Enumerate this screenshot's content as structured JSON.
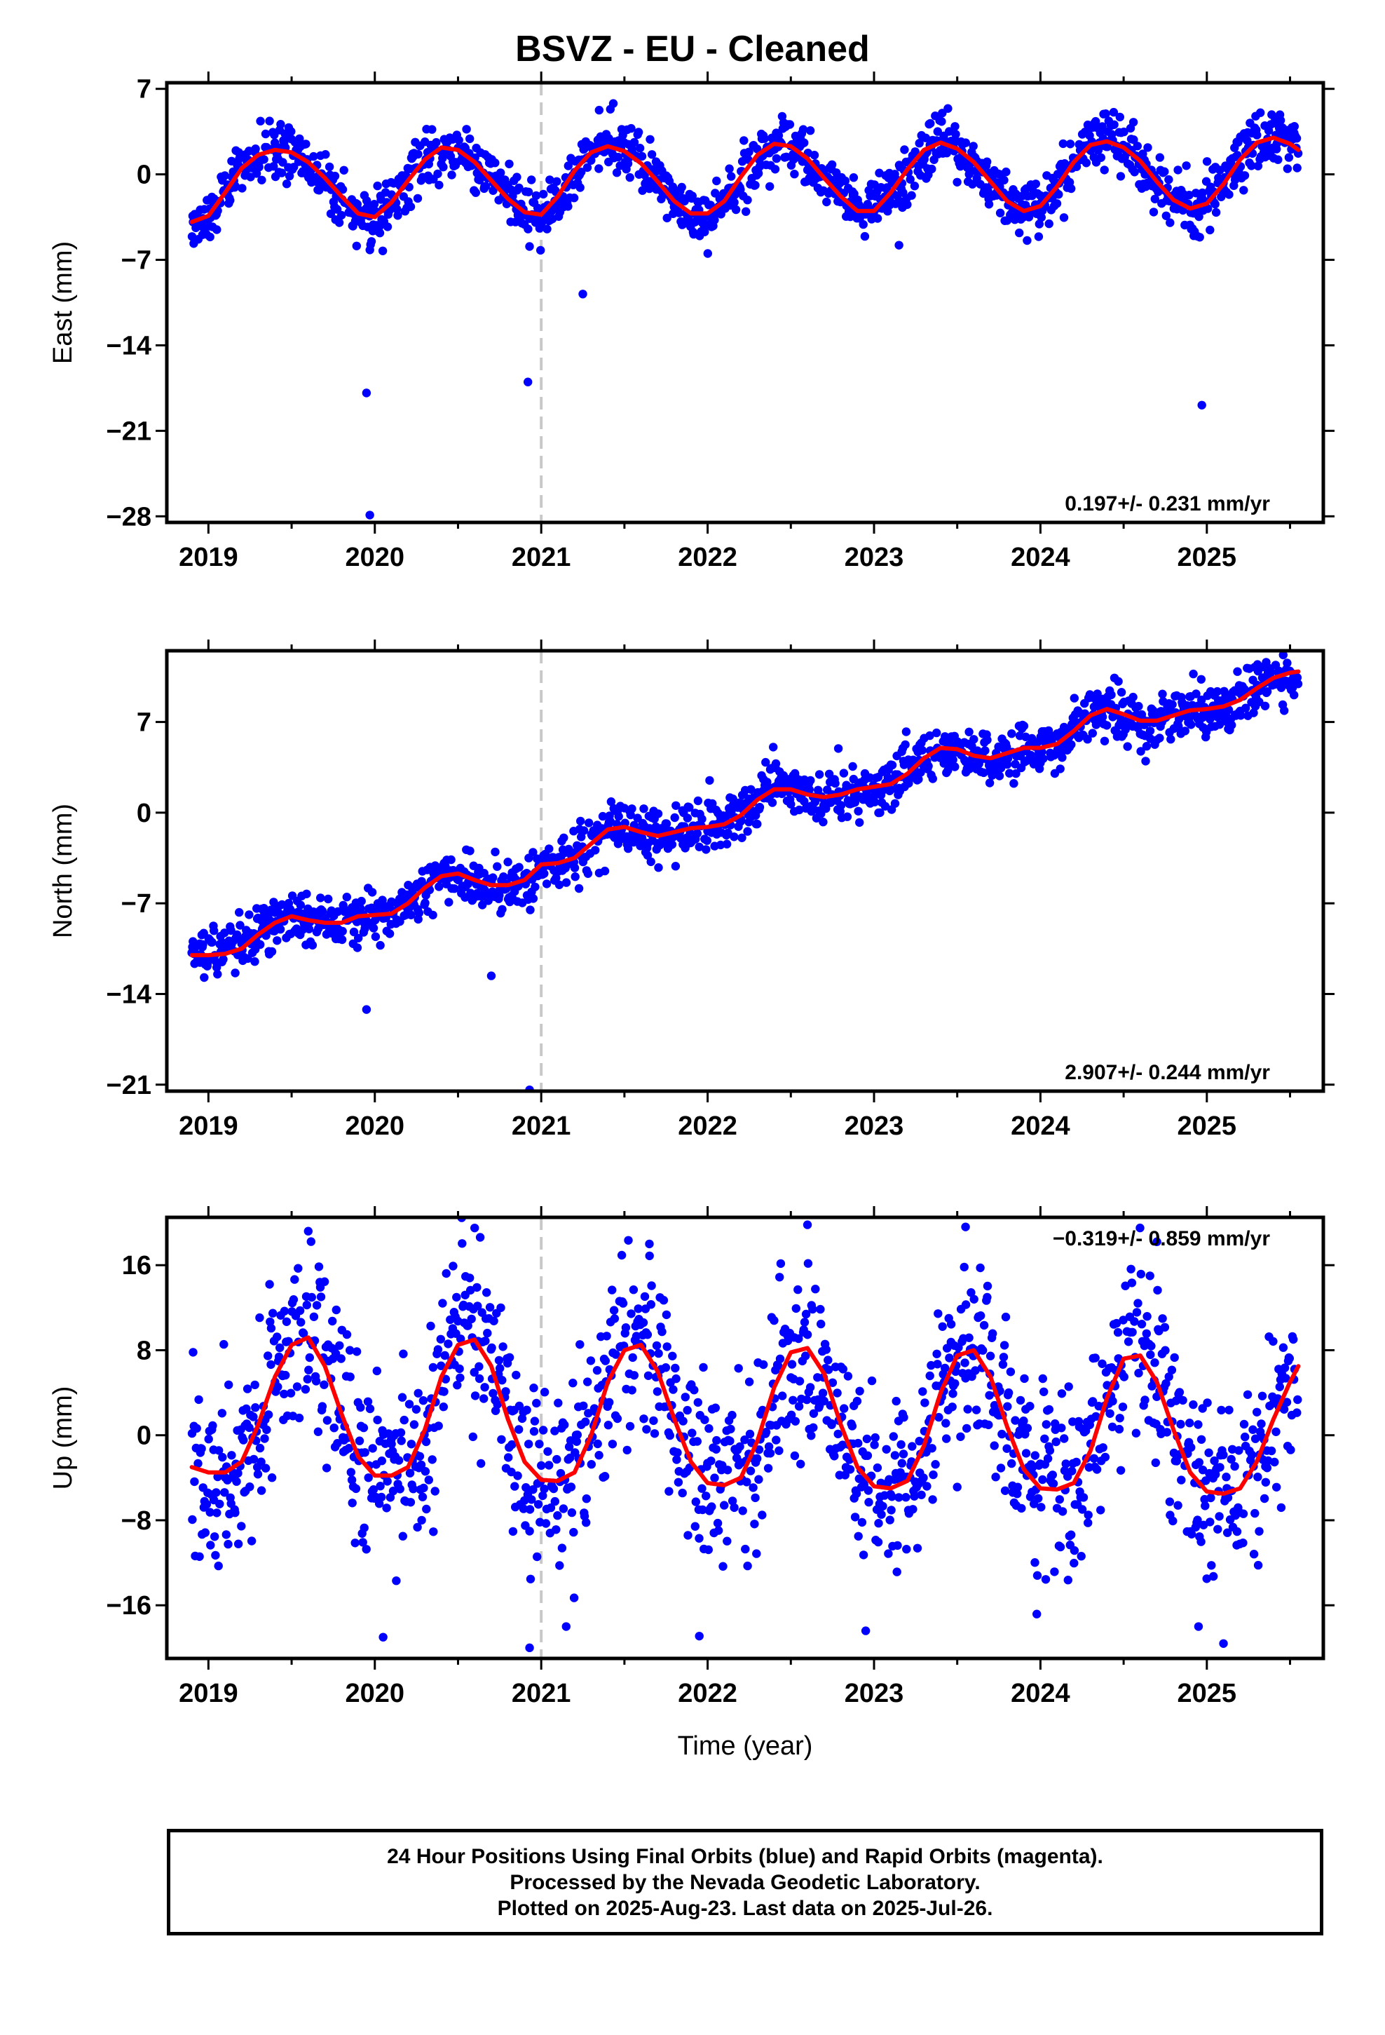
{
  "title": "BSVZ  - EU - Cleaned",
  "footer": {
    "line1": "24 Hour Positions Using Final Orbits (blue) and Rapid Orbits (magenta).",
    "line2": "Processed by the Nevada Geodetic Laboratory.",
    "line3": "Plotted on 2025-Aug-23. Last data on 2025-Jul-26."
  },
  "colors": {
    "points": "#0000ff",
    "model": "#ff0000",
    "marker_line": "#c8c8c8",
    "frame": "#000000"
  },
  "chart_data": [
    {
      "type": "scatter",
      "panel": "east",
      "ylabel": "East (mm)",
      "xlabel": "",
      "xlim": [
        2018.75,
        2025.7
      ],
      "ylim": [
        -28.5,
        7.5
      ],
      "yticks": [
        "7",
        "0",
        "-7",
        "-14",
        "-21",
        "-28"
      ],
      "xticks": [
        "2019",
        "2020",
        "2021",
        "2022",
        "2023",
        "2024",
        "2025"
      ],
      "rate_label": "0.197+/- 0.231 mm/yr",
      "rate_label_position": "bottom-right",
      "vertical_marker_x": 2021.0,
      "series": [
        {
          "role": "daily positions",
          "color": "#0000ff",
          "x": [
            2018.9,
            2019.0,
            2019.1,
            2019.2,
            2019.3,
            2019.4,
            2019.5,
            2019.6,
            2019.7,
            2019.8,
            2019.9,
            2020.0,
            2020.1,
            2020.2,
            2020.3,
            2020.4,
            2020.5,
            2020.6,
            2020.7,
            2020.8,
            2020.9,
            2021.0,
            2021.1,
            2021.2,
            2021.3,
            2021.4,
            2021.5,
            2021.6,
            2021.7,
            2021.8,
            2021.9,
            2022.0,
            2022.1,
            2022.2,
            2022.3,
            2022.4,
            2022.5,
            2022.6,
            2022.7,
            2022.8,
            2022.9,
            2023.0,
            2023.1,
            2023.2,
            2023.3,
            2023.4,
            2023.5,
            2023.6,
            2023.7,
            2023.8,
            2023.9,
            2024.0,
            2024.1,
            2024.2,
            2024.3,
            2024.4,
            2024.5,
            2024.6,
            2024.7,
            2024.8,
            2024.9,
            2025.0,
            2025.1,
            2025.2,
            2025.3,
            2025.4,
            2025.5,
            2025.55
          ],
          "y": [
            -3.9,
            -3.4,
            -1.5,
            0.5,
            1.6,
            2.0,
            1.8,
            1.0,
            -0.3,
            -1.8,
            -3.2,
            -3.5,
            -2.3,
            -0.5,
            1.2,
            2.2,
            2.0,
            1.0,
            -0.5,
            -2.0,
            -3.1,
            -3.3,
            -1.8,
            0.3,
            1.8,
            2.3,
            1.9,
            0.9,
            -0.6,
            -2.2,
            -3.2,
            -3.2,
            -2.2,
            -0.2,
            1.6,
            2.5,
            2.3,
            1.3,
            -0.3,
            -1.8,
            -3.0,
            -3.0,
            -1.5,
            0.4,
            2.0,
            2.6,
            2.1,
            1.0,
            -0.6,
            -2.2,
            -3.0,
            -2.6,
            -1.0,
            1.0,
            2.4,
            2.7,
            2.2,
            1.1,
            -0.6,
            -2.1,
            -2.8,
            -2.4,
            -0.8,
            1.2,
            2.6,
            3.0,
            2.5,
            2.0
          ]
        },
        {
          "role": "outliers",
          "color": "#0000ff",
          "x": [
            2019.95,
            2019.97,
            2020.92,
            2021.25,
            2023.15,
            2024.97
          ],
          "y": [
            -17.9,
            -27.9,
            -17.0,
            -9.8,
            -5.8,
            -18.9
          ]
        },
        {
          "role": "model fit",
          "type": "line",
          "color": "#ff0000",
          "x": [
            2018.9,
            2019.0,
            2019.1,
            2019.2,
            2019.3,
            2019.4,
            2019.5,
            2019.6,
            2019.7,
            2019.8,
            2019.9,
            2020.0,
            2020.1,
            2020.2,
            2020.3,
            2020.4,
            2020.5,
            2020.6,
            2020.7,
            2020.8,
            2020.9,
            2021.0,
            2021.1,
            2021.2,
            2021.3,
            2021.4,
            2021.5,
            2021.6,
            2021.7,
            2021.8,
            2021.9,
            2022.0,
            2022.1,
            2022.2,
            2022.3,
            2022.4,
            2022.5,
            2022.6,
            2022.7,
            2022.8,
            2022.9,
            2023.0,
            2023.1,
            2023.2,
            2023.3,
            2023.4,
            2023.5,
            2023.6,
            2023.7,
            2023.8,
            2023.9,
            2024.0,
            2024.1,
            2024.2,
            2024.3,
            2024.4,
            2024.5,
            2024.6,
            2024.7,
            2024.8,
            2024.9,
            2025.0,
            2025.1,
            2025.2,
            2025.3,
            2025.4,
            2025.5,
            2025.55
          ],
          "y": [
            -3.9,
            -3.4,
            -1.5,
            0.5,
            1.6,
            2.0,
            1.8,
            1.0,
            -0.3,
            -1.8,
            -3.2,
            -3.5,
            -2.3,
            -0.5,
            1.2,
            2.2,
            2.0,
            1.0,
            -0.5,
            -2.0,
            -3.1,
            -3.3,
            -1.8,
            0.3,
            1.8,
            2.3,
            1.9,
            0.9,
            -0.6,
            -2.2,
            -3.2,
            -3.2,
            -2.2,
            -0.2,
            1.6,
            2.5,
            2.3,
            1.3,
            -0.3,
            -1.8,
            -3.0,
            -3.0,
            -1.5,
            0.4,
            2.0,
            2.6,
            2.1,
            1.0,
            -0.6,
            -2.2,
            -3.0,
            -2.6,
            -1.0,
            1.0,
            2.4,
            2.7,
            2.2,
            1.1,
            -0.6,
            -2.1,
            -2.8,
            -2.4,
            -0.8,
            1.2,
            2.6,
            3.0,
            2.5,
            2.0
          ]
        }
      ]
    },
    {
      "type": "scatter",
      "panel": "north",
      "ylabel": "North (mm)",
      "xlabel": "",
      "xlim": [
        2018.75,
        2025.7
      ],
      "ylim": [
        -21.5,
        12.5
      ],
      "yticks": [
        "7",
        "0",
        "-7",
        "-14",
        "-21"
      ],
      "xticks": [
        "2019",
        "2020",
        "2021",
        "2022",
        "2023",
        "2024",
        "2025"
      ],
      "rate_label": "2.907+/- 0.244 mm/yr",
      "rate_label_position": "bottom-right",
      "vertical_marker_x": 2021.0,
      "series": [
        {
          "role": "daily positions",
          "color": "#0000ff",
          "x": [
            2018.9,
            2019.0,
            2019.1,
            2019.2,
            2019.3,
            2019.4,
            2019.5,
            2019.6,
            2019.7,
            2019.8,
            2019.9,
            2020.0,
            2020.1,
            2020.2,
            2020.3,
            2020.4,
            2020.5,
            2020.6,
            2020.7,
            2020.8,
            2020.9,
            2021.0,
            2021.1,
            2021.2,
            2021.3,
            2021.4,
            2021.5,
            2021.6,
            2021.7,
            2021.8,
            2021.9,
            2022.0,
            2022.1,
            2022.2,
            2022.3,
            2022.4,
            2022.5,
            2022.6,
            2022.7,
            2022.8,
            2022.9,
            2023.0,
            2023.1,
            2023.2,
            2023.3,
            2023.4,
            2023.5,
            2023.6,
            2023.7,
            2023.8,
            2023.9,
            2024.0,
            2024.1,
            2024.2,
            2024.3,
            2024.4,
            2024.5,
            2024.6,
            2024.7,
            2024.8,
            2024.9,
            2025.0,
            2025.1,
            2025.2,
            2025.3,
            2025.4,
            2025.5,
            2025.55
          ],
          "y": [
            -11.0,
            -11.0,
            -10.9,
            -10.5,
            -9.4,
            -8.5,
            -8.0,
            -8.3,
            -8.5,
            -8.5,
            -8.0,
            -7.9,
            -7.8,
            -7.0,
            -5.8,
            -4.9,
            -4.7,
            -5.2,
            -5.6,
            -5.6,
            -5.2,
            -4.0,
            -3.9,
            -3.5,
            -2.4,
            -1.3,
            -1.1,
            -1.5,
            -1.8,
            -1.5,
            -1.2,
            -1.1,
            -0.9,
            -0.2,
            1.0,
            1.8,
            1.8,
            1.4,
            1.2,
            1.4,
            1.8,
            2.0,
            2.2,
            3.0,
            4.2,
            5.0,
            4.9,
            4.4,
            4.2,
            4.6,
            5.0,
            5.0,
            5.3,
            6.3,
            7.5,
            8.0,
            7.6,
            7.1,
            7.1,
            7.5,
            7.9,
            8.0,
            8.2,
            8.7,
            9.6,
            10.4,
            10.8,
            10.9
          ]
        },
        {
          "role": "outliers",
          "color": "#0000ff",
          "x": [
            2019.95,
            2020.7,
            2020.93
          ],
          "y": [
            -15.2,
            -12.6,
            -21.4
          ]
        },
        {
          "role": "model fit",
          "type": "line",
          "color": "#ff0000",
          "x": [
            2018.9,
            2019.0,
            2019.1,
            2019.2,
            2019.3,
            2019.4,
            2019.5,
            2019.6,
            2019.7,
            2019.8,
            2019.9,
            2020.0,
            2020.1,
            2020.2,
            2020.3,
            2020.4,
            2020.5,
            2020.6,
            2020.7,
            2020.8,
            2020.9,
            2021.0,
            2021.1,
            2021.2,
            2021.3,
            2021.4,
            2021.5,
            2021.6,
            2021.7,
            2021.8,
            2021.9,
            2022.0,
            2022.1,
            2022.2,
            2022.3,
            2022.4,
            2022.5,
            2022.6,
            2022.7,
            2022.8,
            2022.9,
            2023.0,
            2023.1,
            2023.2,
            2023.3,
            2023.4,
            2023.5,
            2023.6,
            2023.7,
            2023.8,
            2023.9,
            2024.0,
            2024.1,
            2024.2,
            2024.3,
            2024.4,
            2024.5,
            2024.6,
            2024.7,
            2024.8,
            2024.9,
            2025.0,
            2025.1,
            2025.2,
            2025.3,
            2025.4,
            2025.5,
            2025.55
          ],
          "y": [
            -11.0,
            -11.0,
            -10.9,
            -10.5,
            -9.4,
            -8.5,
            -8.0,
            -8.3,
            -8.5,
            -8.5,
            -8.0,
            -7.9,
            -7.8,
            -7.0,
            -5.8,
            -4.9,
            -4.7,
            -5.2,
            -5.6,
            -5.6,
            -5.2,
            -4.0,
            -3.9,
            -3.5,
            -2.4,
            -1.3,
            -1.1,
            -1.5,
            -1.8,
            -1.5,
            -1.2,
            -1.1,
            -0.9,
            -0.2,
            1.0,
            1.8,
            1.8,
            1.4,
            1.2,
            1.4,
            1.8,
            2.0,
            2.2,
            3.0,
            4.2,
            5.0,
            4.9,
            4.4,
            4.2,
            4.6,
            5.0,
            5.0,
            5.3,
            6.3,
            7.5,
            8.0,
            7.6,
            7.1,
            7.1,
            7.5,
            7.9,
            8.0,
            8.2,
            8.7,
            9.6,
            10.4,
            10.8,
            10.9
          ]
        }
      ]
    },
    {
      "type": "scatter",
      "panel": "up",
      "ylabel": "Up (mm)",
      "xlabel": "Time (year)",
      "xlim": [
        2018.75,
        2025.7
      ],
      "ylim": [
        -21,
        20.5
      ],
      "yticks": [
        "16",
        "8",
        "0",
        "-8",
        "-16"
      ],
      "xticks": [
        "2019",
        "2020",
        "2021",
        "2022",
        "2023",
        "2024",
        "2025"
      ],
      "rate_label": "-0.319+/- 0.859 mm/yr",
      "rate_label_position": "top-right",
      "vertical_marker_x": 2021.0,
      "series": [
        {
          "role": "daily positions",
          "color": "#0000ff",
          "x": [
            2018.9,
            2019.0,
            2019.1,
            2019.2,
            2019.3,
            2019.4,
            2019.5,
            2019.6,
            2019.7,
            2019.8,
            2019.9,
            2020.0,
            2020.1,
            2020.2,
            2020.3,
            2020.4,
            2020.5,
            2020.6,
            2020.7,
            2020.8,
            2020.9,
            2021.0,
            2021.1,
            2021.2,
            2021.3,
            2021.4,
            2021.5,
            2021.6,
            2021.7,
            2021.8,
            2021.9,
            2022.0,
            2022.1,
            2022.2,
            2022.3,
            2022.4,
            2022.5,
            2022.6,
            2022.7,
            2022.8,
            2022.9,
            2023.0,
            2023.1,
            2023.2,
            2023.3,
            2023.4,
            2023.5,
            2023.6,
            2023.7,
            2023.8,
            2023.9,
            2024.0,
            2024.1,
            2024.2,
            2024.3,
            2024.4,
            2024.5,
            2024.6,
            2024.7,
            2024.8,
            2024.9,
            2025.0,
            2025.1,
            2025.2,
            2025.3,
            2025.4,
            2025.5,
            2025.55
          ],
          "y": [
            -3.0,
            -3.5,
            -3.5,
            -2.5,
            1.0,
            5.5,
            8.5,
            9.2,
            6.5,
            2.0,
            -2.0,
            -3.8,
            -3.8,
            -3.0,
            0.5,
            5.5,
            8.5,
            9.0,
            6.5,
            1.5,
            -2.5,
            -4.2,
            -4.3,
            -3.5,
            0.0,
            5.0,
            8.0,
            8.5,
            6.0,
            1.5,
            -2.5,
            -4.5,
            -4.7,
            -4.0,
            -0.5,
            4.5,
            7.8,
            8.2,
            5.8,
            1.0,
            -3.0,
            -4.8,
            -5.0,
            -4.3,
            -1.0,
            4.0,
            7.5,
            8.0,
            5.5,
            0.8,
            -3.2,
            -5.0,
            -5.1,
            -4.5,
            -1.5,
            3.5,
            7.2,
            7.5,
            5.0,
            0.5,
            -3.5,
            -5.3,
            -5.5,
            -5.0,
            -2.5,
            1.5,
            5.0,
            6.5
          ]
        },
        {
          "role": "outliers",
          "color": "#0000ff",
          "x": [
            2019.6,
            2020.05,
            2020.6,
            2020.93,
            2021.15,
            2021.65,
            2021.95,
            2022.6,
            2022.95,
            2023.55,
            2024.7,
            2024.95,
            2025.1
          ],
          "y": [
            19.2,
            -19.0,
            19.5,
            -20.0,
            -18.0,
            18.0,
            -18.9,
            19.8,
            -18.4,
            19.6,
            18.2,
            -18.0,
            -19.6
          ]
        },
        {
          "role": "model fit",
          "type": "line",
          "color": "#ff0000",
          "x": [
            2018.9,
            2019.0,
            2019.1,
            2019.2,
            2019.3,
            2019.4,
            2019.5,
            2019.6,
            2019.7,
            2019.8,
            2019.9,
            2020.0,
            2020.1,
            2020.2,
            2020.3,
            2020.4,
            2020.5,
            2020.6,
            2020.7,
            2020.8,
            2020.9,
            2021.0,
            2021.1,
            2021.2,
            2021.3,
            2021.4,
            2021.5,
            2021.6,
            2021.7,
            2021.8,
            2021.9,
            2022.0,
            2022.1,
            2022.2,
            2022.3,
            2022.4,
            2022.5,
            2022.6,
            2022.7,
            2022.8,
            2022.9,
            2023.0,
            2023.1,
            2023.2,
            2023.3,
            2023.4,
            2023.5,
            2023.6,
            2023.7,
            2023.8,
            2023.9,
            2024.0,
            2024.1,
            2024.2,
            2024.3,
            2024.4,
            2024.5,
            2024.6,
            2024.7,
            2024.8,
            2024.9,
            2025.0,
            2025.1,
            2025.2,
            2025.3,
            2025.4,
            2025.5,
            2025.55
          ],
          "y": [
            -3.0,
            -3.5,
            -3.5,
            -2.5,
            1.0,
            5.5,
            8.5,
            9.2,
            6.5,
            2.0,
            -2.0,
            -3.8,
            -3.8,
            -3.0,
            0.5,
            5.5,
            8.5,
            9.0,
            6.5,
            1.5,
            -2.5,
            -4.2,
            -4.3,
            -3.5,
            0.0,
            5.0,
            8.0,
            8.5,
            6.0,
            1.5,
            -2.5,
            -4.5,
            -4.7,
            -4.0,
            -0.5,
            4.5,
            7.8,
            8.2,
            5.8,
            1.0,
            -3.0,
            -4.8,
            -5.0,
            -4.3,
            -1.0,
            4.0,
            7.5,
            8.0,
            5.5,
            0.8,
            -3.2,
            -5.0,
            -5.1,
            -4.5,
            -1.5,
            3.5,
            7.2,
            7.5,
            5.0,
            0.5,
            -3.5,
            -5.3,
            -5.5,
            -5.0,
            -2.5,
            1.5,
            5.0,
            6.5
          ]
        }
      ]
    }
  ]
}
